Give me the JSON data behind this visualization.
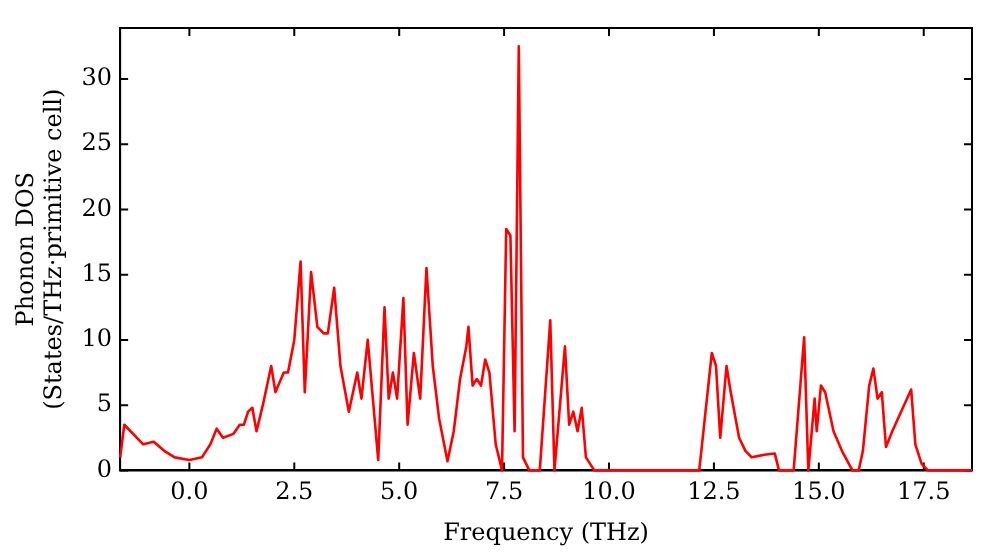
{
  "chart_data": {
    "type": "line",
    "xlabel": "Frequency (THz)",
    "ylabel": "Phonon DOS\n(States/THz·primitive cell)",
    "x": [
      -1.65,
      -1.55,
      -1.1,
      -0.85,
      -0.6,
      -0.35,
      0,
      0.3,
      0.5,
      0.65,
      0.8,
      1.05,
      1.2,
      1.3,
      1.4,
      1.5,
      1.6,
      1.75,
      1.95,
      2.05,
      2.25,
      2.35,
      2.5,
      2.65,
      2.75,
      2.9,
      3.05,
      3.2,
      3.3,
      3.45,
      3.6,
      3.8,
      4.0,
      4.1,
      4.25,
      4.5,
      4.65,
      4.75,
      4.85,
      4.95,
      5.1,
      5.2,
      5.35,
      5.5,
      5.65,
      5.8,
      5.95,
      6.15,
      6.3,
      6.45,
      6.6,
      6.65,
      6.75,
      6.85,
      6.95,
      7.05,
      7.15,
      7.3,
      7.45,
      7.55,
      7.65,
      7.75,
      7.85,
      7.95,
      8.1,
      8.35,
      8.6,
      8.7,
      8.95,
      9.05,
      9.15,
      9.25,
      9.35,
      9.45,
      9.65,
      12.15,
      12.45,
      12.55,
      12.65,
      12.8,
      12.9,
      13.1,
      13.25,
      13.4,
      13.7,
      13.95,
      14.05,
      14.4,
      14.65,
      14.75,
      14.9,
      14.95,
      15.05,
      15.15,
      15.35,
      15.55,
      15.8,
      15.95,
      16.05,
      16.2,
      16.3,
      16.4,
      16.5,
      16.6,
      16.75,
      17.2,
      17.3,
      17.45,
      17.6,
      18.65
    ],
    "series": [
      {
        "color": "#ff0000",
        "values": [
          1,
          3.5,
          2,
          2.2,
          1.5,
          1,
          0.8,
          1,
          2,
          3.2,
          2.5,
          2.8,
          3.5,
          3.5,
          4.5,
          4.8,
          3,
          5,
          8,
          6,
          7.5,
          7.5,
          10,
          16,
          6,
          15.2,
          11,
          10.5,
          10.5,
          14,
          8,
          4.5,
          7.5,
          5.5,
          10,
          0.8,
          12.5,
          5.5,
          7.5,
          5.5,
          13.2,
          3.5,
          9,
          5.5,
          15.5,
          8,
          4,
          0.7,
          3,
          7,
          9.5,
          11,
          6.5,
          7,
          6.5,
          8.5,
          7.5,
          2,
          0,
          18.5,
          18,
          3,
          32.5,
          1,
          0,
          0,
          11.5,
          0,
          9.5,
          3.5,
          4.5,
          3,
          4.8,
          1,
          0,
          0,
          9,
          8,
          2.5,
          8,
          6,
          2.5,
          1.5,
          1,
          1.2,
          1.3,
          0,
          0,
          10.2,
          0,
          5.5,
          3,
          6.5,
          6,
          3,
          1.5,
          0,
          0,
          1.5,
          6.5,
          7.8,
          5.5,
          6,
          1.8,
          3,
          6.2,
          2,
          0.5,
          0,
          0
        ]
      }
    ],
    "xlim": [
      -1.65,
      18.65
    ],
    "ylim": [
      0,
      33.9
    ],
    "xticks": [
      {
        "value": 0,
        "label": "0.0"
      },
      {
        "value": 2.5,
        "label": "2.5"
      },
      {
        "value": 5,
        "label": "5.0"
      },
      {
        "value": 7.5,
        "label": "7.5"
      },
      {
        "value": 10,
        "label": "10.0"
      },
      {
        "value": 12.5,
        "label": "12.5"
      },
      {
        "value": 15,
        "label": "15.0"
      },
      {
        "value": 17.5,
        "label": "17.5"
      }
    ],
    "yticks": [
      0,
      5,
      10,
      15,
      20,
      25,
      30
    ],
    "grid": false,
    "legend": false,
    "marker": "none",
    "line_style": "solid"
  }
}
